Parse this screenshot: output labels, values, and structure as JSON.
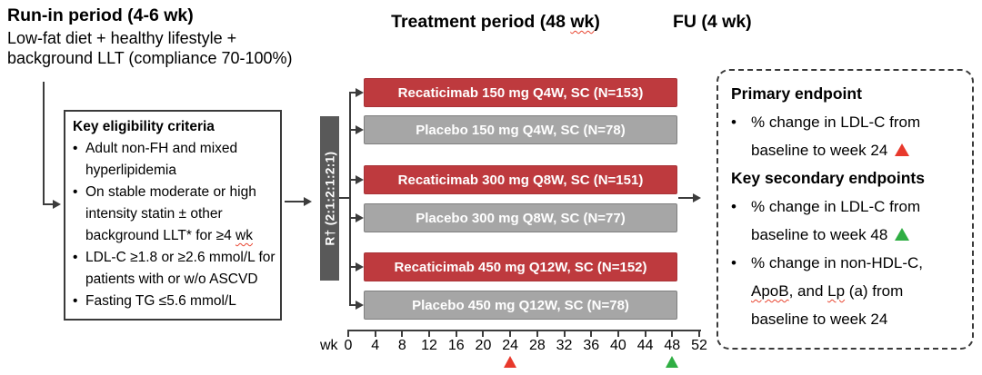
{
  "ui": {
    "bullet": "•"
  },
  "header": {
    "runin_title": "Run-in period (4-6 wk)",
    "runin_subtitle": "Low-fat diet + healthy lifestyle +\nbackground LLT (compliance 70-100%)",
    "treatment_title": "Treatment period (48 wk)",
    "fu_title": "FU (4 wk)"
  },
  "eligibility_box": {
    "title": "Key eligibility criteria",
    "bullets": [
      "Adult non-FH and mixed\nhyperlipidemia",
      "On stable moderate or high\nintensity statin ± other\nbackground LLT* for ≥4 wk",
      "LDL-C ≥1.8 or ≥2.6 mmol/L for\npatients with or w/o ASCVD",
      "Fasting TG ≤5.6 mmol/L"
    ]
  },
  "randomization": {
    "label": "R† (2:1:2:1:2:1)"
  },
  "arms": [
    {
      "label": "Recaticimab 150 mg Q4W, SC (N=153)",
      "type": "treatment"
    },
    {
      "label": "Placebo 150 mg Q4W, SC (N=78)",
      "type": "placebo"
    },
    {
      "label": "Recaticimab 300 mg Q8W, SC (N=151)",
      "type": "treatment"
    },
    {
      "label": "Placebo 300 mg Q8W, SC (N=77)",
      "type": "placebo"
    },
    {
      "label": "Recaticimab 450 mg Q12W, SC (N=152)",
      "type": "treatment"
    },
    {
      "label": "Placebo 450 mg Q12W, SC (N=78)",
      "type": "placebo"
    }
  ],
  "timeline": {
    "unit_label": "wk",
    "ticks": [
      "0",
      "4",
      "8",
      "12",
      "16",
      "20",
      "24",
      "28",
      "32",
      "36",
      "40",
      "44",
      "48",
      "52"
    ],
    "primary_marker_week": 24,
    "secondary_marker_week": 48
  },
  "endpoints_box": {
    "primary_title": "Primary endpoint",
    "primary_bullets": [
      "% change in LDL-C from\nbaseline to week 24"
    ],
    "secondary_title": "Key secondary endpoints",
    "secondary_bullets": [
      "% change in LDL-C from\nbaseline to week 48",
      "% change in non-HDL-C,\nApoB, and Lp (a) from\nbaseline to week 24"
    ]
  },
  "colors": {
    "treatment_bar": "#be3a3e",
    "placebo_bar": "#a6a6a6",
    "randomization_bar": "#595959",
    "line": "#3c3c3c",
    "marker_red": "#e8392c",
    "marker_green": "#2fae43"
  }
}
